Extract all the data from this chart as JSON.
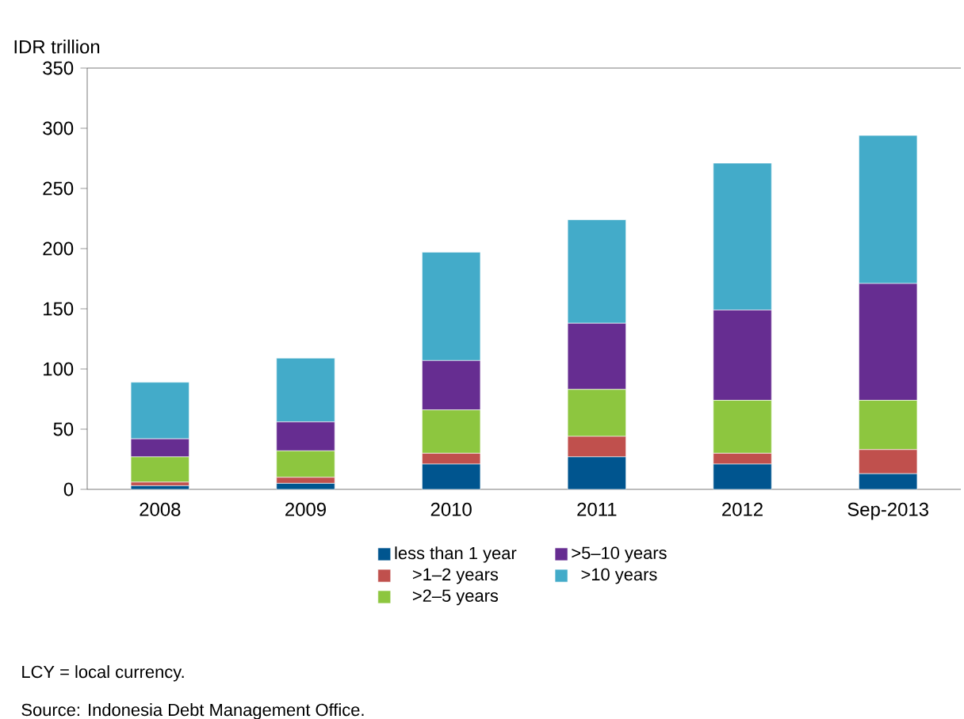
{
  "chart_data": {
    "type": "bar",
    "stacked": true,
    "ylabel": "IDR trillion",
    "categories": [
      "2008",
      "2009",
      "2010",
      "2011",
      "2012",
      "Sep-2013"
    ],
    "series": [
      {
        "name": "less than 1 year",
        "color": "#00558f",
        "values": [
          3,
          5,
          21,
          27,
          21,
          13
        ]
      },
      {
        "name": ">1–2 years",
        "color": "#c0504d",
        "values": [
          3,
          5,
          9,
          17,
          9,
          20
        ]
      },
      {
        "name": ">2–5 years",
        "color": "#8dc63f",
        "values": [
          21,
          22,
          36,
          39,
          44,
          41
        ]
      },
      {
        "name": ">5–10 years",
        "color": "#662d91",
        "values": [
          15,
          24,
          41,
          55,
          75,
          97
        ]
      },
      {
        "name": ">10 years",
        "color": "#43abc9",
        "values": [
          47,
          53,
          90,
          86,
          122,
          123
        ]
      }
    ],
    "ylim": [
      0,
      350
    ],
    "yticks": [
      0,
      50,
      100,
      150,
      200,
      250,
      300,
      350
    ],
    "legend": "bottom",
    "annotations": [
      "LCY = local currency.",
      "Source: Indonesia Debt Management Office."
    ]
  }
}
